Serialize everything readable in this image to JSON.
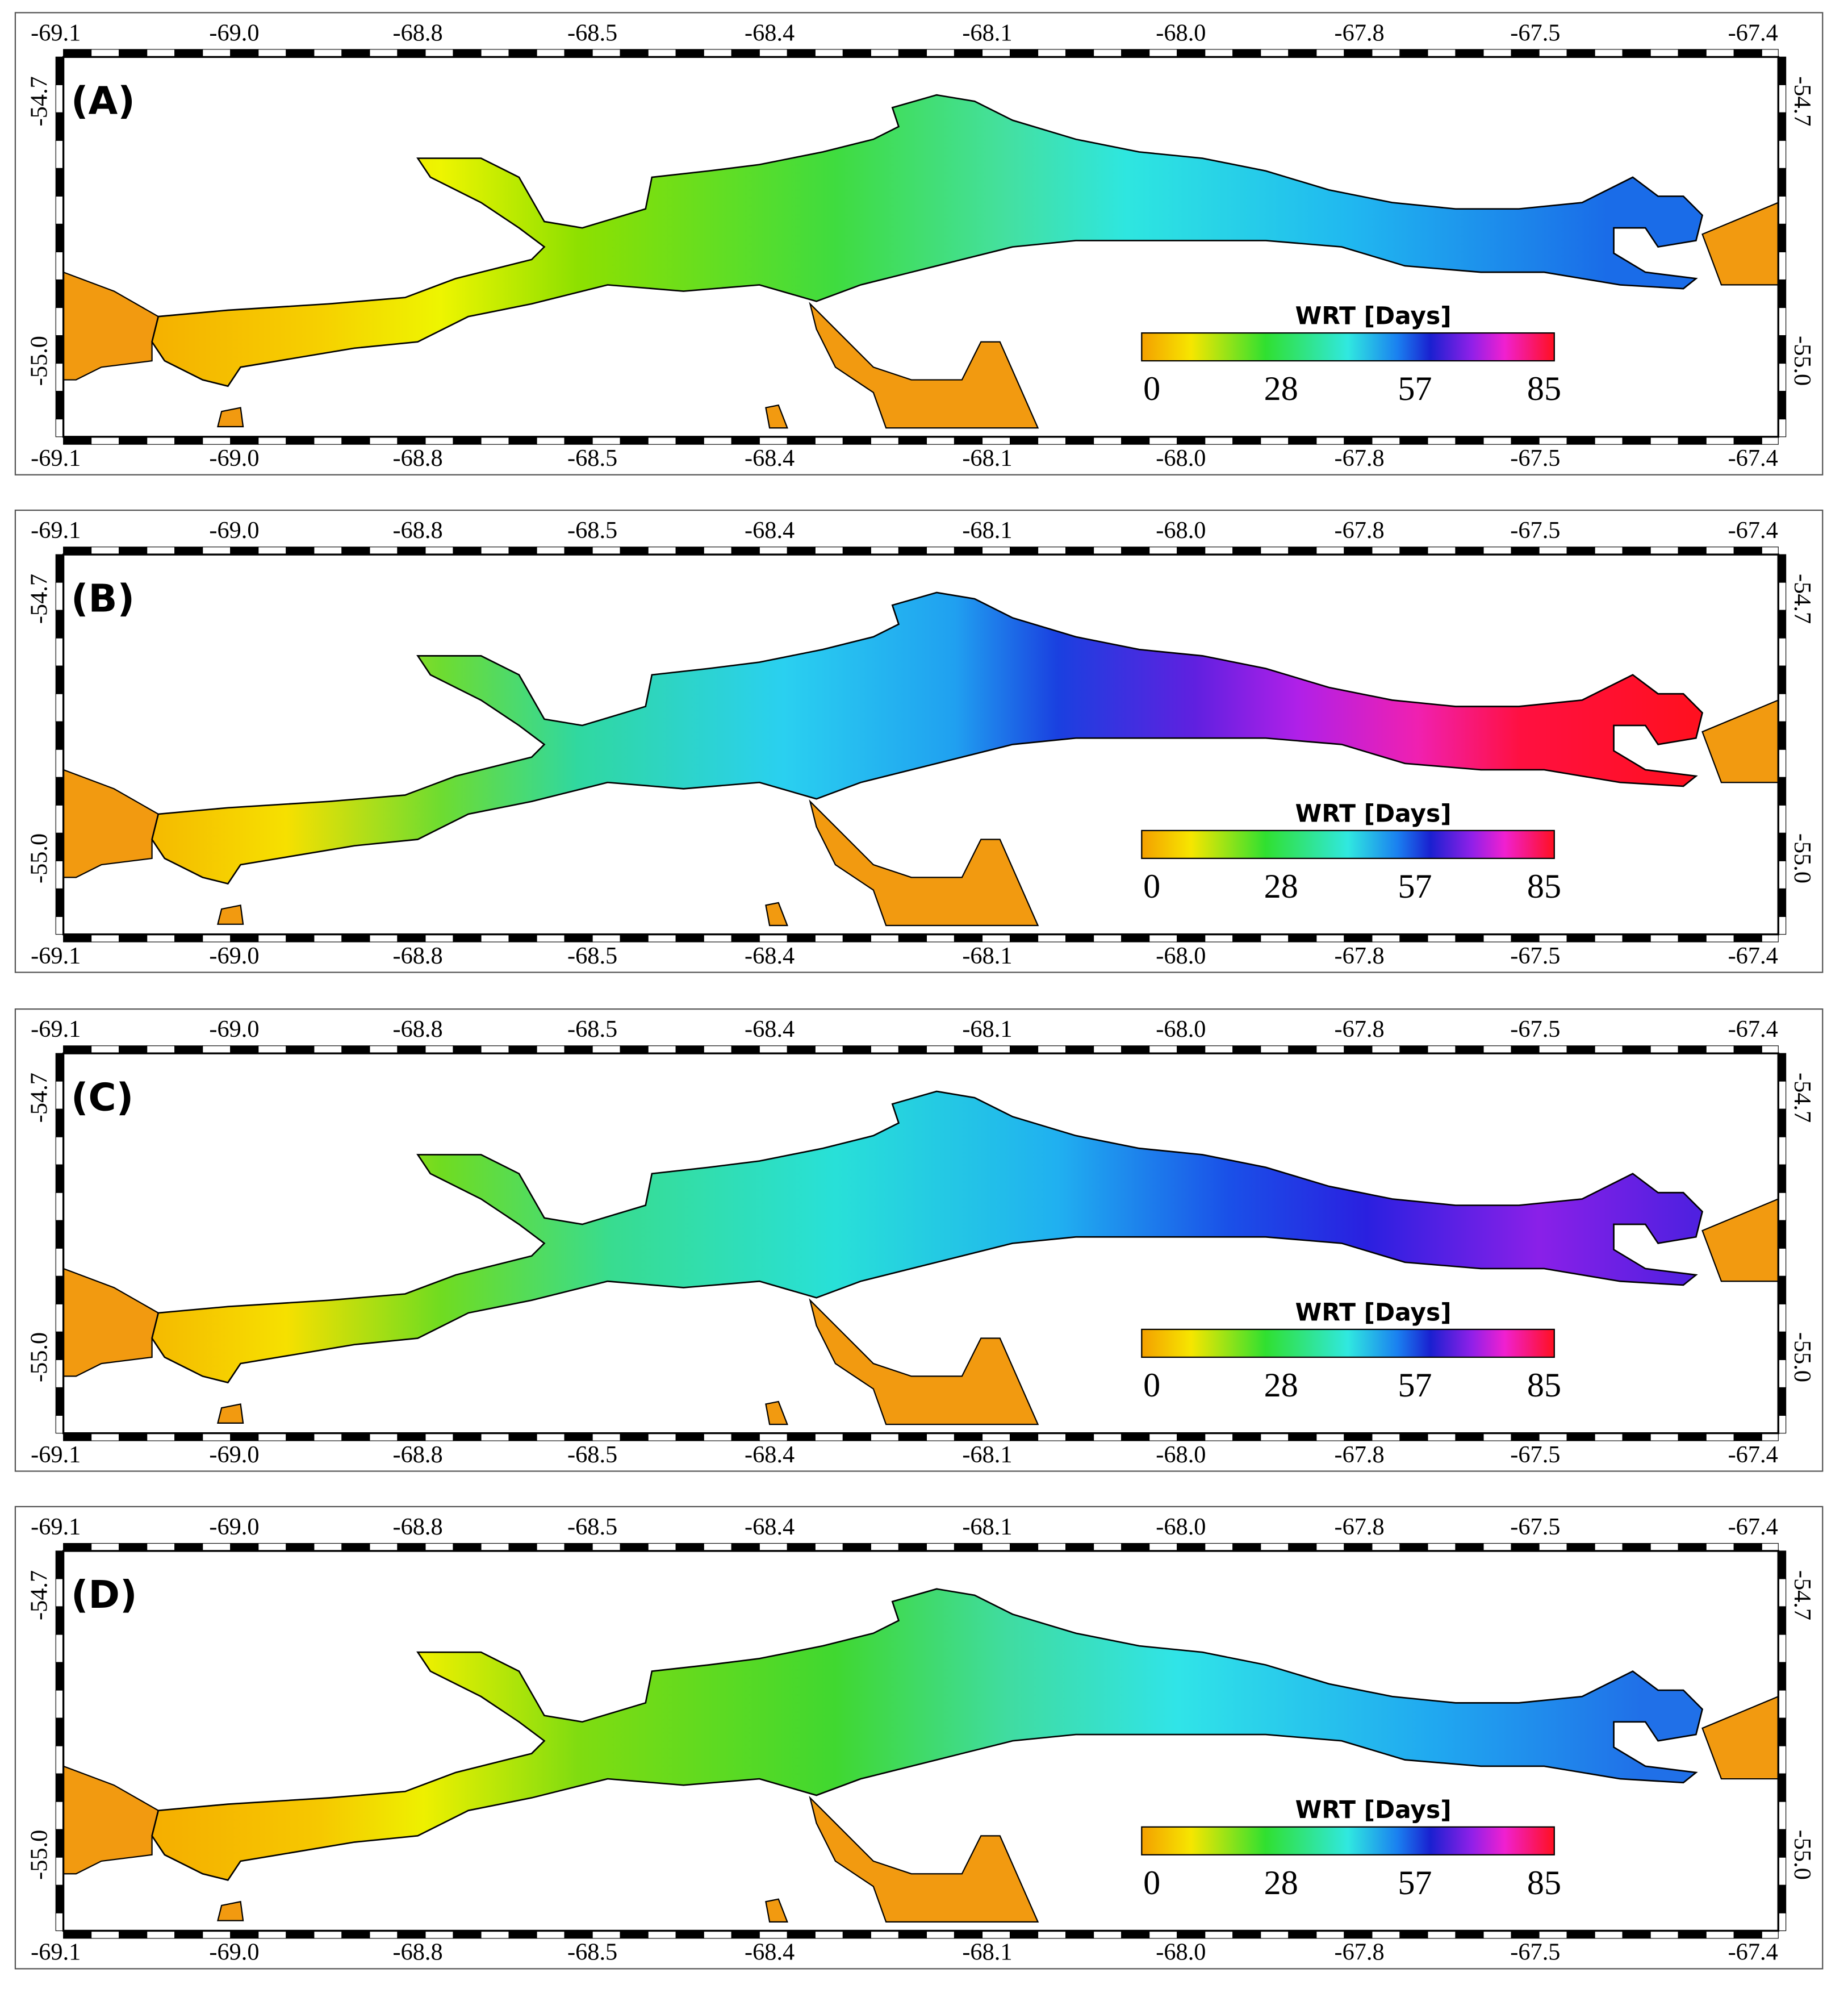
{
  "panels": [
    {
      "label": "(A)"
    },
    {
      "label": "(B)"
    },
    {
      "label": "(C)"
    },
    {
      "label": "(D)"
    }
  ],
  "lon_labels": [
    "-69.1",
    "-69.0",
    "-68.8",
    "-68.5",
    "-68.4",
    "-68.1",
    "-68.0",
    "-67.8",
    "-67.5",
    "-67.4"
  ],
  "lat_labels": [
    "-54.7",
    "-55.0"
  ],
  "colorbar": {
    "title": "WRT [Days]",
    "ticks": [
      0,
      28,
      57,
      85
    ]
  }
}
